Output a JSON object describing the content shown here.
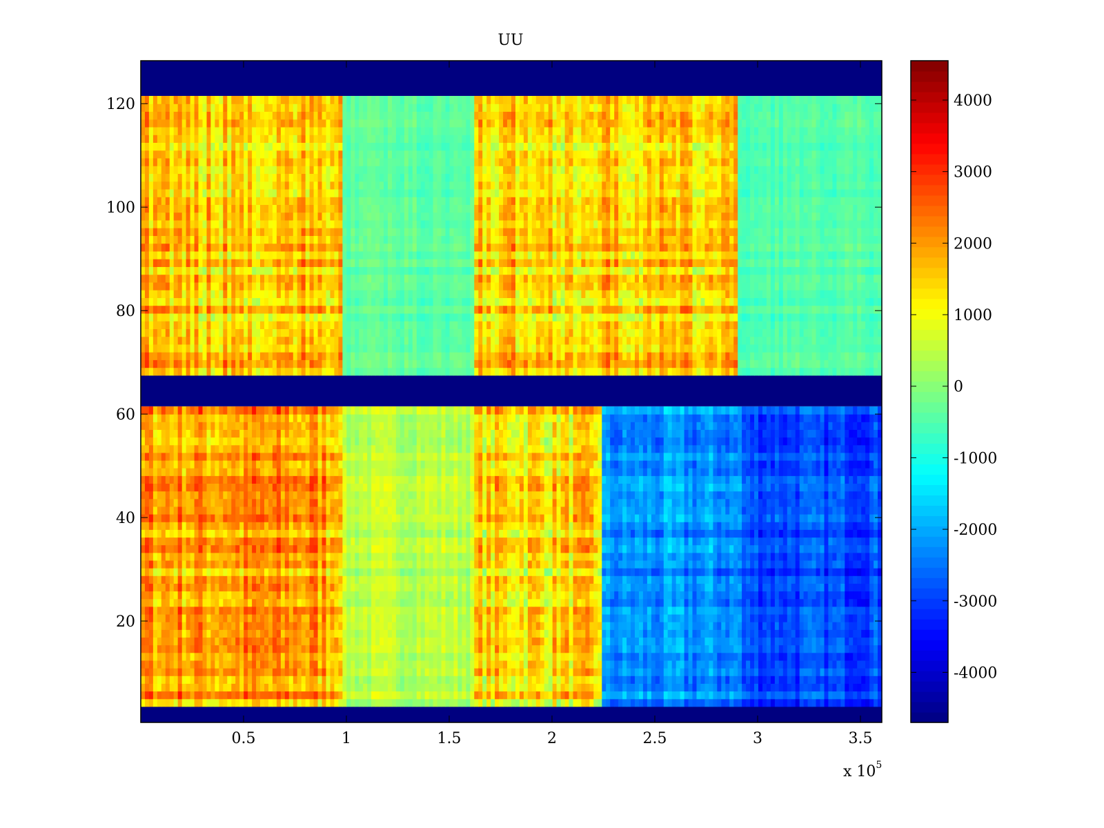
{
  "chart_data": {
    "type": "heatmap",
    "title": "UU",
    "xlabel": "",
    "ylabel": "",
    "x_multiplier_label": "x 10",
    "x_multiplier_exp": "5",
    "xlim": [
      0,
      3.604
    ],
    "ylim": [
      0.4,
      128.3
    ],
    "xticks": [
      0.5,
      1,
      1.5,
      2,
      2.5,
      3,
      3.5
    ],
    "xtick_labels": [
      "0.5",
      "1",
      "1.5",
      "2",
      "2.5",
      "3",
      "3.5"
    ],
    "yticks": [
      20,
      40,
      60,
      80,
      100,
      120
    ],
    "ytick_labels": [
      "20",
      "40",
      "60",
      "80",
      "100",
      "120"
    ],
    "colormap": "jet",
    "clim": [
      -4700,
      4550
    ],
    "colorbar_ticks": [
      4000,
      3000,
      2000,
      1000,
      0,
      -1000,
      -2000,
      -3000,
      -4000
    ],
    "colorbar_tick_labels": [
      "4000",
      "3000",
      "2000",
      "1000",
      "0",
      "-1000",
      "-2000",
      "-3000",
      "-4000"
    ],
    "fill_value": -4700,
    "row_bands": [
      {
        "y": [
          0.4,
          3.5
        ],
        "fill": true
      },
      {
        "y": [
          3.5,
          61.5
        ],
        "segments": [
          {
            "x": [
              0,
              0.98
            ],
            "mean": 1900,
            "spread": 1300
          },
          {
            "x": [
              0.98,
              1.62
            ],
            "mean": 450,
            "spread": 600
          },
          {
            "x": [
              1.62,
              2.24
            ],
            "mean": 1300,
            "spread": 1300
          },
          {
            "x": [
              2.24,
              2.93
            ],
            "mean": -2300,
            "spread": 900
          },
          {
            "x": [
              2.93,
              3.604
            ],
            "mean": -2900,
            "spread": 800
          }
        ]
      },
      {
        "y": [
          61.5,
          67.5
        ],
        "fill": true
      },
      {
        "y": [
          67.5,
          121.5
        ],
        "segments": [
          {
            "x": [
              0,
              0.98
            ],
            "mean": 1500,
            "spread": 1300
          },
          {
            "x": [
              0.98,
              1.62
            ],
            "mean": -400,
            "spread": 400
          },
          {
            "x": [
              1.62,
              2.9
            ],
            "mean": 1400,
            "spread": 1300
          },
          {
            "x": [
              2.9,
              3.604
            ],
            "mean": -500,
            "spread": 400
          }
        ]
      },
      {
        "y": [
          121.5,
          128.3
        ],
        "fill": true
      }
    ]
  }
}
